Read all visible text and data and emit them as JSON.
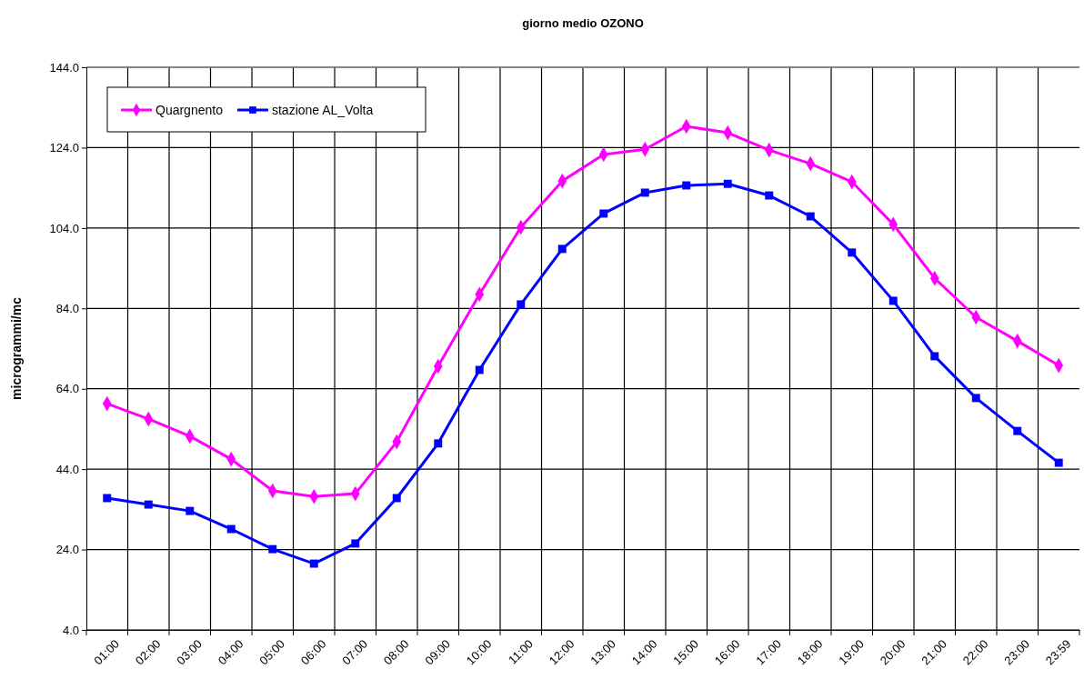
{
  "chart_data": {
    "type": "line",
    "title": "giorno medio OZONO",
    "ylabel": "microgrammi/mc",
    "categories": [
      "01:00",
      "02:00",
      "03:00",
      "04:00",
      "05:00",
      "06:00",
      "07:00",
      "08:00",
      "09:00",
      "10:00",
      "11:00",
      "12:00",
      "13:00",
      "14:00",
      "15:00",
      "16:00",
      "17:00",
      "18:00",
      "19:00",
      "20:00",
      "21:00",
      "22:00",
      "23:00",
      "23:59"
    ],
    "series": [
      {
        "name": "Quargnento",
        "color": "#ff00ff",
        "marker": "diamond",
        "values": [
          60.3,
          56.5,
          52.2,
          46.5,
          38.6,
          37.2,
          37.9,
          50.8,
          69.6,
          87.5,
          104.2,
          115.7,
          122.3,
          123.6,
          129.3,
          127.7,
          123.4,
          120.0,
          115.5,
          104.9,
          91.5,
          81.8,
          75.9,
          69.8
        ]
      },
      {
        "name": "stazione AL_Volta",
        "color": "#0000ff",
        "marker": "square",
        "values": [
          36.8,
          35.2,
          33.6,
          29.1,
          24.1,
          20.5,
          25.5,
          36.8,
          50.4,
          68.7,
          85.0,
          98.8,
          107.6,
          112.8,
          114.6,
          115.0,
          112.1,
          106.9,
          97.9,
          85.9,
          72.1,
          61.7,
          53.5,
          45.6
        ]
      }
    ],
    "ylim": [
      4,
      144
    ],
    "yticks": [
      {
        "value": 4,
        "label": "4.0"
      },
      {
        "value": 24,
        "label": "24.0"
      },
      {
        "value": 44,
        "label": "44.0"
      },
      {
        "value": 64,
        "label": "64.0"
      },
      {
        "value": 84,
        "label": "84.0"
      },
      {
        "value": 104,
        "label": "104.0"
      },
      {
        "value": 124,
        "label": "124.0"
      },
      {
        "value": 144,
        "label": "144.0"
      }
    ],
    "grid": true,
    "legend": "top left",
    "line_style": "solid"
  }
}
